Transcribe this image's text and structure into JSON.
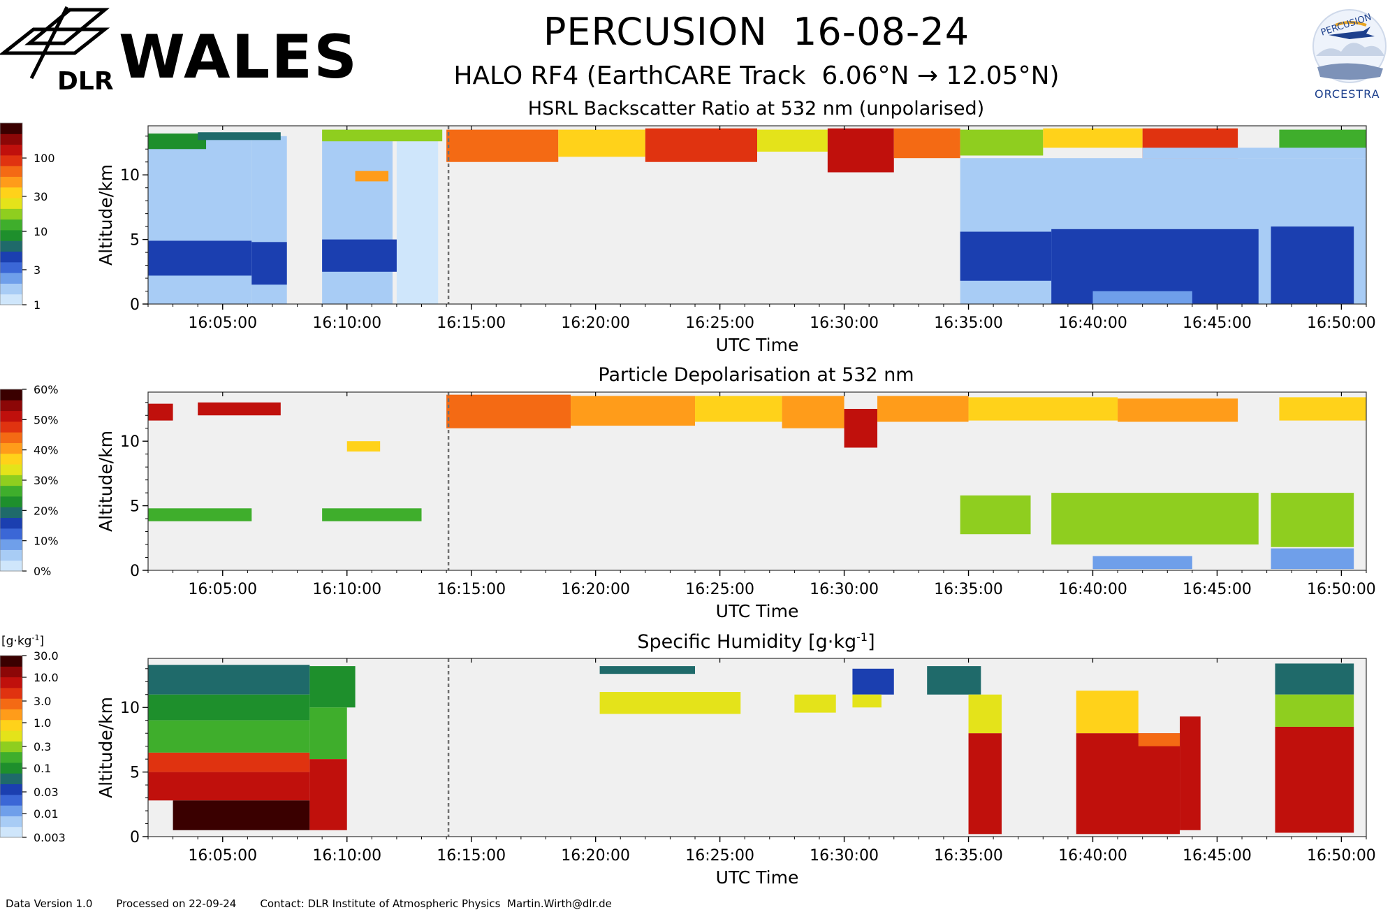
{
  "header": {
    "title": "PERCUSION  16-08-24",
    "subtitle": "HALO RF4 (EarthCARE Track  6.06°N → 12.05°N)",
    "wales_logo_text": "WALES",
    "dlr_logo_text": "DLR",
    "percusion_logo_top": "PERCUSION",
    "percusion_logo_bottom": "ORCESTRA"
  },
  "footer": {
    "version": "Data Version 1.0",
    "processed": "Processed on 22-09-24",
    "contact": "Contact: DLR Institute of Atmospheric Physics  Martin.Wirth@dlr.de"
  },
  "colors": {
    "plot_background": "#f0f0f0",
    "event_line": "#707070"
  },
  "chart_data": [
    {
      "type": "heatmap",
      "title": "HSRL Backscatter Ratio at 532 nm (unpolarised)",
      "xlabel": "UTC Time",
      "ylabel": "Altitude/km",
      "x_ticks": [
        "16:05:00",
        "16:10:00",
        "16:15:00",
        "16:20:00",
        "16:25:00",
        "16:30:00",
        "16:35:00",
        "16:40:00",
        "16:45:00",
        "16:50:00"
      ],
      "y_ticks": [
        0,
        5,
        10
      ],
      "xlim": [
        "16:02:00",
        "16:51:00"
      ],
      "ylim": [
        0,
        13.8
      ],
      "event_line_time": "16:14:05",
      "colorbar": {
        "scale": "log",
        "ticks": [
          "1",
          "3",
          "10",
          "30",
          "100"
        ],
        "colors": [
          "#cfe6fb",
          "#a8ccf5",
          "#6f9fea",
          "#3b67d6",
          "#1b3fb0",
          "#1f6a6a",
          "#1e8f2c",
          "#3fae2c",
          "#8fce1f",
          "#e4e31a",
          "#ffd21a",
          "#ff9c1a",
          "#f46a14",
          "#e03310",
          "#c0100c",
          "#8c0707",
          "#3a0000"
        ]
      },
      "cells": [
        {
          "x0": "16:02:00",
          "x1": "16:06:10",
          "y0": 0,
          "y1": 13.0,
          "value": 1.5
        },
        {
          "x0": "16:02:00",
          "x1": "16:06:10",
          "y0": 2.2,
          "y1": 4.9,
          "value": 4
        },
        {
          "x0": "16:06:10",
          "x1": "16:07:35",
          "y0": 0,
          "y1": 13.0,
          "value": 1.5
        },
        {
          "x0": "16:06:10",
          "x1": "16:07:35",
          "y0": 1.5,
          "y1": 4.8,
          "value": 4
        },
        {
          "x0": "16:09:00",
          "x1": "16:11:50",
          "y0": 0,
          "y1": 13.3,
          "value": 1.5
        },
        {
          "x0": "16:09:00",
          "x1": "16:13:00",
          "y0": 2.5,
          "y1": 5.0,
          "value": 4
        },
        {
          "x0": "16:12:00",
          "x1": "16:13:40",
          "y0": 0,
          "y1": 13.4,
          "value": 1.3
        },
        {
          "x0": "16:02:00",
          "x1": "16:04:20",
          "y0": 12.0,
          "y1": 13.2,
          "value": 8
        },
        {
          "x0": "16:04:00",
          "x1": "16:07:20",
          "y0": 12.7,
          "y1": 13.3,
          "value": 6
        },
        {
          "x0": "16:10:20",
          "x1": "16:11:40",
          "y0": 9.5,
          "y1": 10.3,
          "value": 45
        },
        {
          "x0": "16:09:00",
          "x1": "16:13:50",
          "y0": 12.6,
          "y1": 13.5,
          "value": 18
        },
        {
          "x0": "16:14:00",
          "x1": "16:18:30",
          "y0": 11.0,
          "y1": 13.5,
          "value": 70
        },
        {
          "x0": "16:18:30",
          "x1": "16:22:00",
          "y0": 11.4,
          "y1": 13.5,
          "value": 40
        },
        {
          "x0": "16:22:00",
          "x1": "16:26:30",
          "y0": 11.0,
          "y1": 13.6,
          "value": 80
        },
        {
          "x0": "16:26:30",
          "x1": "16:29:20",
          "y0": 11.8,
          "y1": 13.5,
          "value": 25
        },
        {
          "x0": "16:29:20",
          "x1": "16:32:00",
          "y0": 10.2,
          "y1": 13.6,
          "value": 110
        },
        {
          "x0": "16:32:00",
          "x1": "16:34:40",
          "y0": 11.3,
          "y1": 13.6,
          "value": 60
        },
        {
          "x0": "16:34:40",
          "x1": "16:38:00",
          "y0": 11.5,
          "y1": 13.5,
          "value": 20
        },
        {
          "x0": "16:38:00",
          "x1": "16:42:00",
          "y0": 12.1,
          "y1": 13.6,
          "value": 40
        },
        {
          "x0": "16:42:00",
          "x1": "16:45:50",
          "y0": 11.3,
          "y1": 13.6,
          "value": 90
        },
        {
          "x0": "16:47:30",
          "x1": "16:51:00",
          "y0": 12.0,
          "y1": 13.5,
          "value": 12
        },
        {
          "x0": "16:34:40",
          "x1": "16:51:00",
          "y0": 0,
          "y1": 11.3,
          "value": 1.5
        },
        {
          "x0": "16:42:00",
          "x1": "16:51:00",
          "y0": 11.3,
          "y1": 12.1,
          "value": 1.5
        },
        {
          "x0": "16:34:40",
          "x1": "16:38:20",
          "y0": 1.8,
          "y1": 5.6,
          "value": 4
        },
        {
          "x0": "16:38:20",
          "x1": "16:46:40",
          "y0": 0,
          "y1": 5.8,
          "value": 4
        },
        {
          "x0": "16:47:10",
          "x1": "16:50:30",
          "y0": 0,
          "y1": 6.0,
          "value": 4
        },
        {
          "x0": "16:40:00",
          "x1": "16:44:00",
          "y0": 0,
          "y1": 1.0,
          "value": 2.5
        }
      ]
    },
    {
      "type": "heatmap",
      "title": "Particle Depolarisation at 532 nm",
      "xlabel": "UTC Time",
      "ylabel": "Altitude/km",
      "x_ticks": [
        "16:05:00",
        "16:10:00",
        "16:15:00",
        "16:20:00",
        "16:25:00",
        "16:30:00",
        "16:35:00",
        "16:40:00",
        "16:45:00",
        "16:50:00"
      ],
      "y_ticks": [
        0,
        5,
        10
      ],
      "xlim": [
        "16:02:00",
        "16:51:00"
      ],
      "ylim": [
        0,
        13.8
      ],
      "event_line_time": "16:14:05",
      "colorbar": {
        "scale": "linear",
        "ticks": [
          "0%",
          "10%",
          "20%",
          "30%",
          "40%",
          "50%",
          "60%"
        ],
        "colors": [
          "#cfe6fb",
          "#a8ccf5",
          "#6f9fea",
          "#3b67d6",
          "#1b3fb0",
          "#1f6a6a",
          "#1e8f2c",
          "#3fae2c",
          "#8fce1f",
          "#e4e31a",
          "#ffd21a",
          "#ff9c1a",
          "#f46a14",
          "#e03310",
          "#c0100c",
          "#8c0707",
          "#3a0000"
        ]
      },
      "cells": [
        {
          "x0": "16:02:00",
          "x1": "16:06:10",
          "y0": 3.8,
          "y1": 4.8,
          "value": 27
        },
        {
          "x0": "16:09:00",
          "x1": "16:13:00",
          "y0": 3.8,
          "y1": 4.8,
          "value": 27
        },
        {
          "x0": "16:02:00",
          "x1": "16:03:00",
          "y0": 11.6,
          "y1": 12.9,
          "value": 50
        },
        {
          "x0": "16:04:00",
          "x1": "16:07:20",
          "y0": 12.0,
          "y1": 13.0,
          "value": 50
        },
        {
          "x0": "16:10:00",
          "x1": "16:11:20",
          "y0": 9.2,
          "y1": 10.0,
          "value": 38
        },
        {
          "x0": "16:14:00",
          "x1": "16:19:00",
          "y0": 11.0,
          "y1": 13.6,
          "value": 44
        },
        {
          "x0": "16:19:00",
          "x1": "16:24:00",
          "y0": 11.2,
          "y1": 13.5,
          "value": 40
        },
        {
          "x0": "16:24:00",
          "x1": "16:27:30",
          "y0": 11.5,
          "y1": 13.5,
          "value": 36
        },
        {
          "x0": "16:27:30",
          "x1": "16:30:00",
          "y0": 11.0,
          "y1": 13.5,
          "value": 40
        },
        {
          "x0": "16:30:00",
          "x1": "16:31:20",
          "y0": 9.5,
          "y1": 12.5,
          "value": 52
        },
        {
          "x0": "16:31:20",
          "x1": "16:35:00",
          "y0": 11.5,
          "y1": 13.5,
          "value": 40
        },
        {
          "x0": "16:35:00",
          "x1": "16:41:00",
          "y0": 11.6,
          "y1": 13.4,
          "value": 36
        },
        {
          "x0": "16:41:00",
          "x1": "16:45:50",
          "y0": 11.5,
          "y1": 13.3,
          "value": 42
        },
        {
          "x0": "16:47:30",
          "x1": "16:51:00",
          "y0": 11.6,
          "y1": 13.4,
          "value": 36
        },
        {
          "x0": "16:34:40",
          "x1": "16:37:30",
          "y0": 2.8,
          "y1": 5.8,
          "value": 29
        },
        {
          "x0": "16:38:20",
          "x1": "16:46:40",
          "y0": 2.0,
          "y1": 6.0,
          "value": 30
        },
        {
          "x0": "16:47:10",
          "x1": "16:50:30",
          "y0": 1.8,
          "y1": 6.0,
          "value": 30
        },
        {
          "x0": "16:47:10",
          "x1": "16:50:30",
          "y0": 0.1,
          "y1": 1.7,
          "value": 10
        },
        {
          "x0": "16:40:00",
          "x1": "16:44:00",
          "y0": 0.1,
          "y1": 1.1,
          "value": 9
        }
      ]
    },
    {
      "type": "heatmap",
      "title": "Specific Humidity [g·kg",
      "title_superscript": "-1",
      "title_suffix": "]",
      "xlabel": "UTC Time",
      "ylabel": "Altitude/km",
      "x_ticks": [
        "16:05:00",
        "16:10:00",
        "16:15:00",
        "16:20:00",
        "16:25:00",
        "16:30:00",
        "16:35:00",
        "16:40:00",
        "16:45:00",
        "16:50:00"
      ],
      "y_ticks": [
        0,
        5,
        10
      ],
      "xlim": [
        "16:02:00",
        "16:51:00"
      ],
      "ylim": [
        0,
        13.8
      ],
      "event_line_time": "16:14:05",
      "colorbar": {
        "scale": "log",
        "unit_label": "[g·kg",
        "unit_superscript": "-1",
        "unit_suffix": "]",
        "ticks": [
          "0.003",
          "0.01",
          "0.03",
          "0.1",
          "0.3",
          "1.0",
          "3.0",
          "10.0",
          "30.0"
        ],
        "colors": [
          "#cfe6fb",
          "#a8ccf5",
          "#6f9fea",
          "#3b67d6",
          "#1b3fb0",
          "#1f6a6a",
          "#1e8f2c",
          "#3fae2c",
          "#8fce1f",
          "#e4e31a",
          "#ffd21a",
          "#ff9c1a",
          "#f46a14",
          "#e03310",
          "#c0100c",
          "#8c0707",
          "#3a0000"
        ]
      },
      "cells": [
        {
          "x0": "16:02:00",
          "x1": "16:08:30",
          "y0": 11.0,
          "y1": 13.3,
          "value": 0.06
        },
        {
          "x0": "16:02:00",
          "x1": "16:08:30",
          "y0": 9.0,
          "y1": 11.0,
          "value": 0.1
        },
        {
          "x0": "16:02:00",
          "x1": "16:08:30",
          "y0": 6.5,
          "y1": 9.0,
          "value": 0.15
        },
        {
          "x0": "16:02:00",
          "x1": "16:08:30",
          "y0": 5.0,
          "y1": 6.5,
          "value": 5
        },
        {
          "x0": "16:02:00",
          "x1": "16:08:30",
          "y0": 2.8,
          "y1": 5.0,
          "value": 10
        },
        {
          "x0": "16:03:00",
          "x1": "16:08:30",
          "y0": 0.5,
          "y1": 2.8,
          "value": 18
        },
        {
          "x0": "16:08:30",
          "x1": "16:10:20",
          "y0": 10.0,
          "y1": 13.2,
          "value": 0.08
        },
        {
          "x0": "16:08:30",
          "x1": "16:10:00",
          "y0": 6.0,
          "y1": 10.0,
          "value": 0.15
        },
        {
          "x0": "16:08:30",
          "x1": "16:10:00",
          "y0": 0.5,
          "y1": 6.0,
          "value": 10
        },
        {
          "x0": "16:20:10",
          "x1": "16:24:00",
          "y0": 12.6,
          "y1": 13.2,
          "value": 0.05
        },
        {
          "x0": "16:20:10",
          "x1": "16:25:50",
          "y0": 9.5,
          "y1": 11.2,
          "value": 0.5
        },
        {
          "x0": "16:28:00",
          "x1": "16:29:40",
          "y0": 9.6,
          "y1": 11.0,
          "value": 0.6
        },
        {
          "x0": "16:30:20",
          "x1": "16:32:00",
          "y0": 11.0,
          "y1": 13.0,
          "value": 0.04
        },
        {
          "x0": "16:30:20",
          "x1": "16:31:30",
          "y0": 10.0,
          "y1": 11.0,
          "value": 0.4
        },
        {
          "x0": "16:33:20",
          "x1": "16:35:30",
          "y0": 11.0,
          "y1": 13.2,
          "value": 0.05
        },
        {
          "x0": "16:35:00",
          "x1": "16:36:20",
          "y0": 8.0,
          "y1": 11.0,
          "value": 0.5
        },
        {
          "x0": "16:35:00",
          "x1": "16:36:20",
          "y0": 0.2,
          "y1": 8.0,
          "value": 6
        },
        {
          "x0": "16:39:20",
          "x1": "16:41:50",
          "y0": 8.0,
          "y1": 11.3,
          "value": 1.0
        },
        {
          "x0": "16:39:20",
          "x1": "16:43:30",
          "y0": 0.2,
          "y1": 8.0,
          "value": 8
        },
        {
          "x0": "16:41:50",
          "x1": "16:43:30",
          "y0": 7.0,
          "y1": 8.0,
          "value": 3
        },
        {
          "x0": "16:43:30",
          "x1": "16:44:20",
          "y0": 0.5,
          "y1": 9.3,
          "value": 7
        },
        {
          "x0": "16:47:20",
          "x1": "16:50:30",
          "y0": 11.0,
          "y1": 13.4,
          "value": 0.06
        },
        {
          "x0": "16:47:20",
          "x1": "16:50:30",
          "y0": 8.5,
          "y1": 11.0,
          "value": 0.3
        },
        {
          "x0": "16:47:20",
          "x1": "16:50:30",
          "y0": 0.3,
          "y1": 8.5,
          "value": 8
        }
      ]
    }
  ]
}
